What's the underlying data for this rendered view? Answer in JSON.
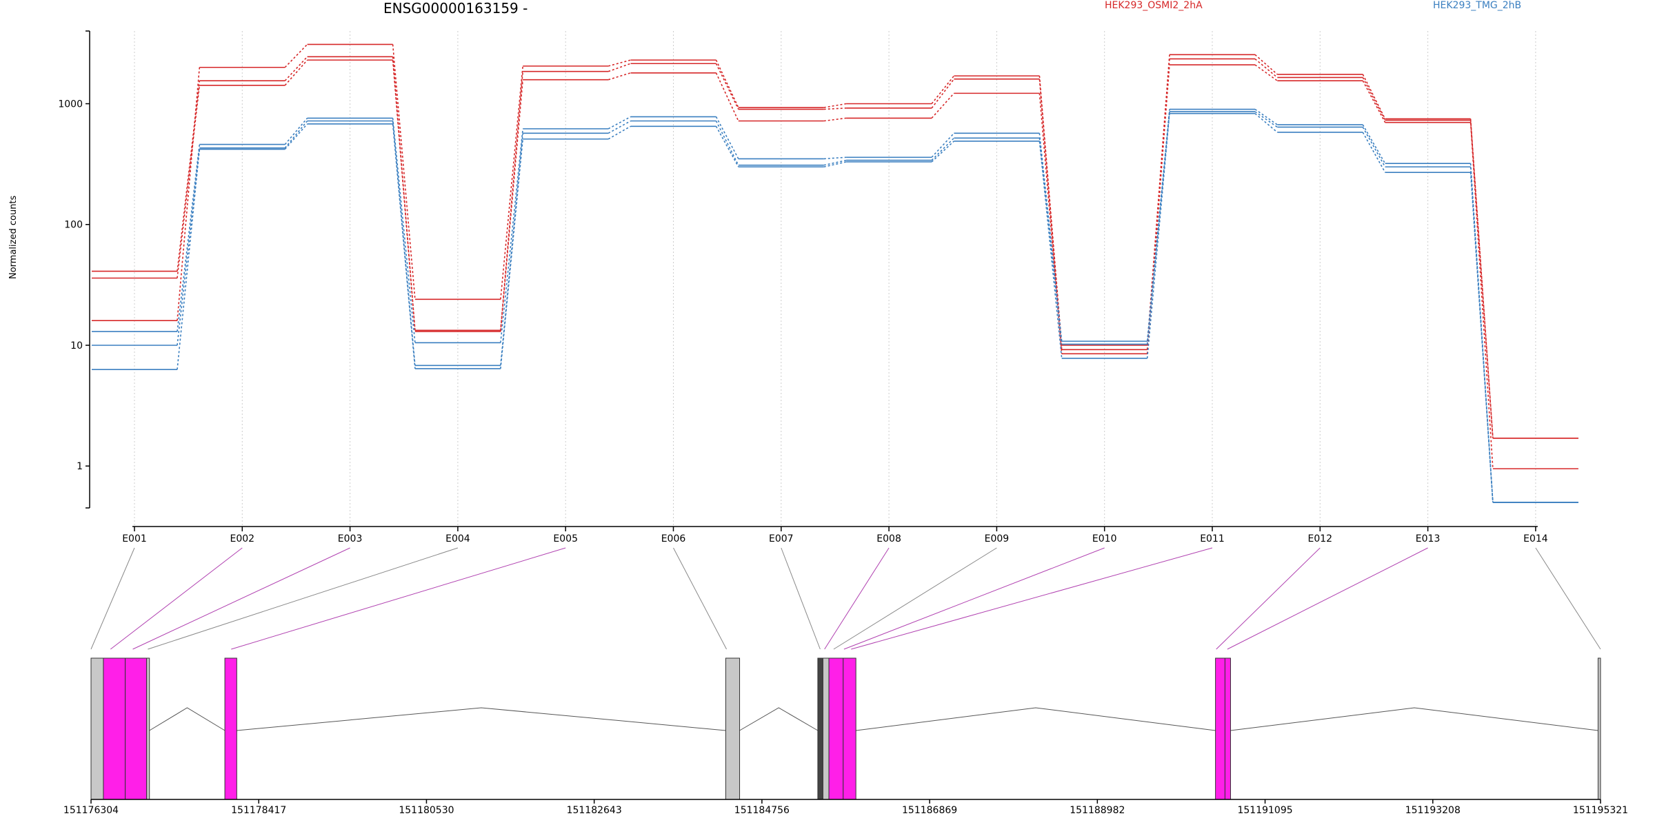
{
  "chart_data": {
    "type": "line",
    "title": "ENSG00000163159 -",
    "ylabel": "Normalized counts",
    "xlabel": "",
    "y_scale": "log",
    "ylim": [
      0.45,
      4000
    ],
    "y_ticks": [
      1,
      10,
      100,
      1000
    ],
    "y_tick_labels": [
      "1",
      "10",
      "100",
      "1000"
    ],
    "grid": "vertical dotted lines at exon bins",
    "legend_placement": "top-right",
    "categories": [
      "E001",
      "E002",
      "E003",
      "E004",
      "E005",
      "E006",
      "E007",
      "E008",
      "E009",
      "E010",
      "E011",
      "E012",
      "E013",
      "E014"
    ],
    "legend": [
      {
        "label": "HEK293_OSMI2_2hA",
        "color": "#d62728"
      },
      {
        "label": "HEK293_TMG_2hB",
        "color": "#3a7fc0"
      }
    ],
    "series": [
      {
        "group": "HEK293_OSMI2_2hA",
        "color": "#d62728",
        "values": [
          16,
          2000,
          3100,
          24,
          2050,
          2300,
          930,
          1000,
          1700,
          10,
          2550,
          1750,
          750,
          1.7
        ]
      },
      {
        "group": "HEK293_OSMI2_2hA",
        "color": "#d62728",
        "values": [
          41,
          1550,
          2450,
          13.3,
          1850,
          2150,
          900,
          920,
          1600,
          9.2,
          2350,
          1650,
          730,
          1.7
        ]
      },
      {
        "group": "HEK293_OSMI2_2hA",
        "color": "#d62728",
        "values": [
          36,
          1420,
          2300,
          13,
          1580,
          1800,
          720,
          760,
          1220,
          8.5,
          2100,
          1550,
          700,
          0.95
        ]
      },
      {
        "group": "HEK293_TMG_2hB",
        "color": "#3a7fc0",
        "values": [
          13,
          460,
          760,
          10.5,
          620,
          780,
          350,
          360,
          570,
          10.8,
          900,
          670,
          320,
          0.5
        ]
      },
      {
        "group": "HEK293_TMG_2hB",
        "color": "#3a7fc0",
        "values": [
          10,
          430,
          720,
          6.8,
          570,
          720,
          310,
          340,
          520,
          10.2,
          860,
          640,
          300,
          0.5
        ]
      },
      {
        "group": "HEK293_TMG_2hB",
        "color": "#3a7fc0",
        "values": [
          6.3,
          420,
          680,
          6.4,
          510,
          650,
          300,
          330,
          490,
          7.8,
          830,
          580,
          270,
          0.5
        ]
      }
    ],
    "gene_model": {
      "genomic_ticks": [
        "151176304",
        "151178417",
        "151180530",
        "151182643",
        "151184756",
        "151186869",
        "151188982",
        "151191095",
        "151193208",
        "151195321"
      ],
      "axis_range": [
        151176304,
        151195321
      ],
      "exons": [
        {
          "id": "E001",
          "start": 151176304,
          "end": 151176460,
          "fill": "#c8c8c8"
        },
        {
          "id": "E002",
          "start": 151176460,
          "end": 151176735,
          "fill": "#ff1fe8"
        },
        {
          "id": "E003",
          "start": 151176735,
          "end": 151177005,
          "fill": "#ff1fe8"
        },
        {
          "id": "E004",
          "start": 151177005,
          "end": 151177040,
          "fill": "#c8c8c8"
        },
        {
          "id": "E005",
          "start": 151177990,
          "end": 151178140,
          "fill": "#ff1fe8"
        },
        {
          "id": "E006",
          "start": 151184300,
          "end": 151184475,
          "fill": "#c8c8c8"
        },
        {
          "id": "E007",
          "start": 151185460,
          "end": 151185525,
          "fill": "#444444"
        },
        {
          "id": "E008",
          "start": 151185525,
          "end": 151185600,
          "fill": "#c8c8c8"
        },
        {
          "id": "E009",
          "start": 151185600,
          "end": 151185780,
          "fill": "#ff1fe8"
        },
        {
          "id": "E010",
          "start": 151185780,
          "end": 151185940,
          "fill": "#ff1fe8"
        },
        {
          "id": "E011",
          "start": 151190470,
          "end": 151190590,
          "fill": "#ff1fe8"
        },
        {
          "id": "E012",
          "start": 151190590,
          "end": 151190660,
          "fill": "#ff1fe8"
        },
        {
          "id": "E013",
          "start": 151195290,
          "end": 151195321,
          "fill": "#c8c8c8"
        }
      ],
      "connector_targets": [
        151176304,
        151176550,
        151176830,
        151177020,
        151178070,
        151184310,
        151185490,
        151185545,
        151185660,
        151185790,
        151185880,
        151190480,
        151190620,
        151195321
      ],
      "connector_colors": [
        "#888888",
        "#b040b0",
        "#b040b0",
        "#888888",
        "#b040b0",
        "#888888",
        "#888888",
        "#b040b0",
        "#888888",
        "#b040b0",
        "#b040b0",
        "#b040b0",
        "#b040b0",
        "#888888"
      ],
      "introns": [
        [
          151177040,
          151177990
        ],
        [
          151178140,
          151184300
        ],
        [
          151184475,
          151185460
        ],
        [
          151185940,
          151190470
        ],
        [
          151190660,
          151195290
        ]
      ]
    }
  }
}
